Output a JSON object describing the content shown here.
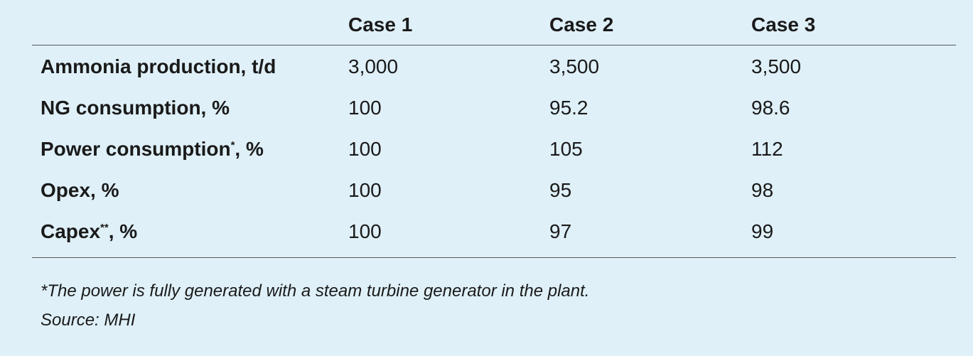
{
  "table": {
    "columns": [
      "Case 1",
      "Case 2",
      "Case 3"
    ],
    "rows": [
      {
        "label": {
          "text": "Ammonia production, t/d"
        },
        "values": [
          "3,000",
          "3,500",
          "3,500"
        ]
      },
      {
        "label": {
          "text": "NG consumption, %"
        },
        "values": [
          "100",
          "95.2",
          "98.6"
        ]
      },
      {
        "label": {
          "text": "Power consumption",
          "sup": "*",
          "suffix": ", %"
        },
        "values": [
          "100",
          "105",
          "112"
        ]
      },
      {
        "label": {
          "text": "Opex, %"
        },
        "values": [
          "100",
          "95",
          "98"
        ]
      },
      {
        "label": {
          "text": "Capex",
          "sup": "**",
          "suffix": ", %"
        },
        "values": [
          "100",
          "97",
          "99"
        ]
      }
    ]
  },
  "notes": [
    "*The power is fully generated with a steam turbine generator in the plant.",
    "Source: MHI"
  ]
}
